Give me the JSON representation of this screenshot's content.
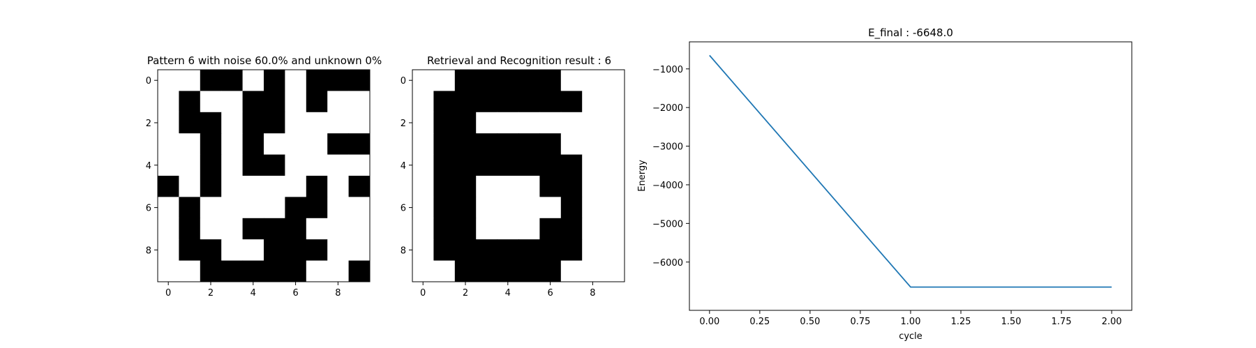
{
  "chart_data": [
    {
      "type": "heatmap",
      "title": "Pattern 6 with noise 60.0% and unknown 0%",
      "xlabel": "",
      "ylabel": "",
      "x_ticks": [
        "0",
        "2",
        "4",
        "6",
        "8"
      ],
      "y_ticks": [
        "0",
        "2",
        "4",
        "6",
        "8"
      ],
      "colors": {
        "1": "#000000",
        "0": "#ffffff"
      },
      "grid": [
        [
          0,
          0,
          1,
          1,
          0,
          1,
          0,
          1,
          1,
          1
        ],
        [
          0,
          1,
          0,
          0,
          1,
          1,
          0,
          1,
          0,
          0
        ],
        [
          0,
          1,
          1,
          0,
          1,
          1,
          0,
          0,
          0,
          0
        ],
        [
          0,
          0,
          1,
          0,
          1,
          0,
          0,
          0,
          1,
          1
        ],
        [
          0,
          0,
          1,
          0,
          1,
          1,
          0,
          0,
          0,
          0
        ],
        [
          1,
          0,
          1,
          0,
          0,
          0,
          0,
          1,
          0,
          1
        ],
        [
          0,
          1,
          0,
          0,
          0,
          0,
          1,
          1,
          0,
          0
        ],
        [
          0,
          1,
          0,
          0,
          1,
          1,
          1,
          0,
          0,
          0
        ],
        [
          0,
          1,
          1,
          0,
          0,
          1,
          1,
          1,
          0,
          0
        ],
        [
          0,
          0,
          1,
          1,
          1,
          1,
          1,
          0,
          0,
          1
        ]
      ]
    },
    {
      "type": "heatmap",
      "title": "Retrieval and Recognition result : 6",
      "xlabel": "",
      "ylabel": "",
      "x_ticks": [
        "0",
        "2",
        "4",
        "6",
        "8"
      ],
      "y_ticks": [
        "0",
        "2",
        "4",
        "6",
        "8"
      ],
      "colors": {
        "1": "#000000",
        "0": "#ffffff"
      },
      "grid": [
        [
          0,
          0,
          1,
          1,
          1,
          1,
          1,
          0,
          0,
          0
        ],
        [
          0,
          1,
          1,
          1,
          1,
          1,
          1,
          1,
          0,
          0
        ],
        [
          0,
          1,
          1,
          0,
          0,
          0,
          0,
          0,
          0,
          0
        ],
        [
          0,
          1,
          1,
          1,
          1,
          1,
          1,
          0,
          0,
          0
        ],
        [
          0,
          1,
          1,
          1,
          1,
          1,
          1,
          1,
          0,
          0
        ],
        [
          0,
          1,
          1,
          0,
          0,
          0,
          1,
          1,
          0,
          0
        ],
        [
          0,
          1,
          1,
          0,
          0,
          0,
          0,
          1,
          0,
          0
        ],
        [
          0,
          1,
          1,
          0,
          0,
          0,
          1,
          1,
          0,
          0
        ],
        [
          0,
          1,
          1,
          1,
          1,
          1,
          1,
          1,
          0,
          0
        ],
        [
          0,
          0,
          1,
          1,
          1,
          1,
          1,
          0,
          0,
          0
        ]
      ]
    },
    {
      "type": "line",
      "title": "E_final : -6648.0",
      "xlabel": "cycle",
      "ylabel": "Energy",
      "xlim": [
        -0.1,
        2.1
      ],
      "ylim": [
        -7250,
        -300
      ],
      "x_ticks": [
        0.0,
        0.25,
        0.5,
        0.75,
        1.0,
        1.25,
        1.5,
        1.75,
        2.0
      ],
      "x_tick_labels": [
        "0.00",
        "0.25",
        "0.50",
        "0.75",
        "1.00",
        "1.25",
        "1.50",
        "1.75",
        "2.00"
      ],
      "y_ticks": [
        -1000,
        -2000,
        -3000,
        -4000,
        -5000,
        -6000
      ],
      "y_tick_labels": [
        "−1000",
        "−2000",
        "−3000",
        "−4000",
        "−5000",
        "−6000"
      ],
      "grid_lines": false,
      "series": [
        {
          "color": "#1f77b4",
          "x": [
            0,
            1,
            2
          ],
          "y": [
            -650,
            -6648,
            -6648
          ]
        }
      ]
    }
  ]
}
